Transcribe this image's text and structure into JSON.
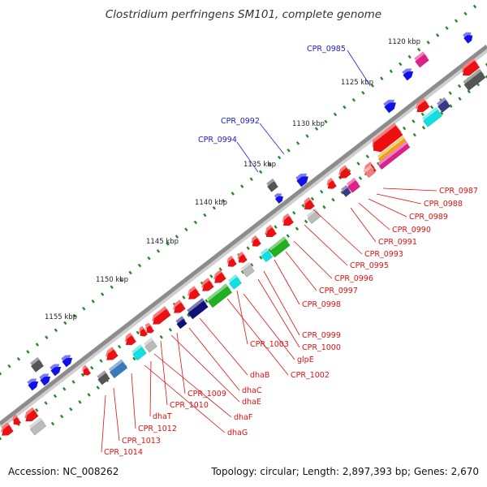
{
  "title": "Clostridium perfringens SM101, complete genome",
  "accession": "Accession: NC_008262",
  "topology": "Topology: circular; Length: 2,897,393 bp; Genes: 2,670",
  "colors": {
    "backbone": "#8c8c8c",
    "tick": "#2a8a2a",
    "forward_label": "#1a1ad0",
    "reverse_label": "#e01010",
    "leader": "#e01010"
  },
  "position_ticks": [
    "1120 kbp",
    "1125 kbp",
    "1130 kbp",
    "1135 kbp",
    "1140 kbp",
    "1145 kbp",
    "1150 kbp",
    "1155 kbp"
  ],
  "forward_gene_labels": [
    "CPR_0985",
    "CPR_0992",
    "CPR_0994"
  ],
  "reverse_gene_labels": [
    "CPR_0987",
    "CPR_0988",
    "CPR_0989",
    "CPR_0990",
    "CPR_0991",
    "CPR_0993",
    "CPR_0995",
    "CPR_0996",
    "CPR_0997",
    "CPR_0998",
    "CPR_0999",
    "CPR_1000",
    "CPR_1003",
    "glpE",
    "CPR_1002",
    "dhaB",
    "dhaC",
    "CPR_1009",
    "dhaE",
    "CPR_1010",
    "dhaF",
    "dhaT",
    "dhaG",
    "CPR_1012",
    "CPR_1013",
    "CPR_1014"
  ]
}
